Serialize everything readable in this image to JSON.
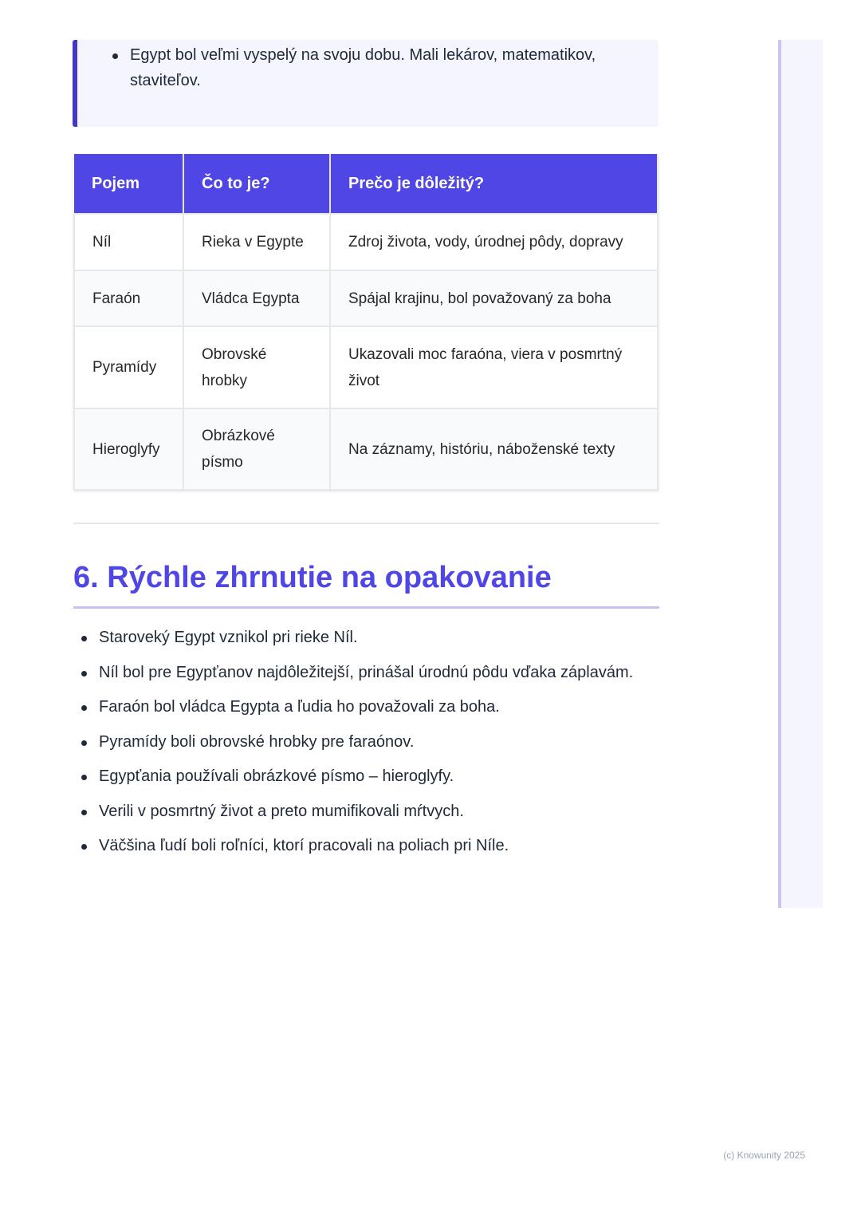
{
  "note": {
    "items": [
      "Egypt bol veľmi vyspelý na svoju dobu. Mali lekárov, matematikov, staviteľov."
    ]
  },
  "table": {
    "headers": [
      "Pojem",
      "Čo to je?",
      "Prečo je dôležitý?"
    ],
    "rows": [
      [
        "Níl",
        "Rieka v Egypte",
        "Zdroj života, vody, úrodnej pôdy, dopravy"
      ],
      [
        "Faraón",
        "Vládca Egypta",
        "Spájal krajinu, bol považovaný za boha"
      ],
      [
        "Pyramídy",
        "Obrovské hrobky",
        "Ukazovali moc faraóna, viera v posmrtný život"
      ],
      [
        "Hieroglyfy",
        "Obrázkové písmo",
        "Na záznamy, históriu, náboženské texty"
      ]
    ]
  },
  "section": {
    "title": "6. Rýchle zhrnutie na opakovanie",
    "items": [
      "Staroveký Egypt vznikol pri rieke Níl.",
      "Níl bol pre Egypťanov najdôležitejší, prinášal úrodnú pôdu vďaka záplavám.",
      "Faraón bol vládca Egypta a ľudia ho považovali za boha.",
      "Pyramídy boli obrovské hrobky pre faraónov.",
      "Egypťania používali obrázkové písmo – hieroglyfy.",
      "Verili v posmrtný život a preto mumifikovali mŕtvych.",
      "Väčšina ľudí boli roľníci, ktorí pracovali na poliach pri Níle."
    ]
  },
  "footer": {
    "copyright": "(c) Knowunity 2025"
  },
  "colors": {
    "accent": "#4f46e5"
  }
}
